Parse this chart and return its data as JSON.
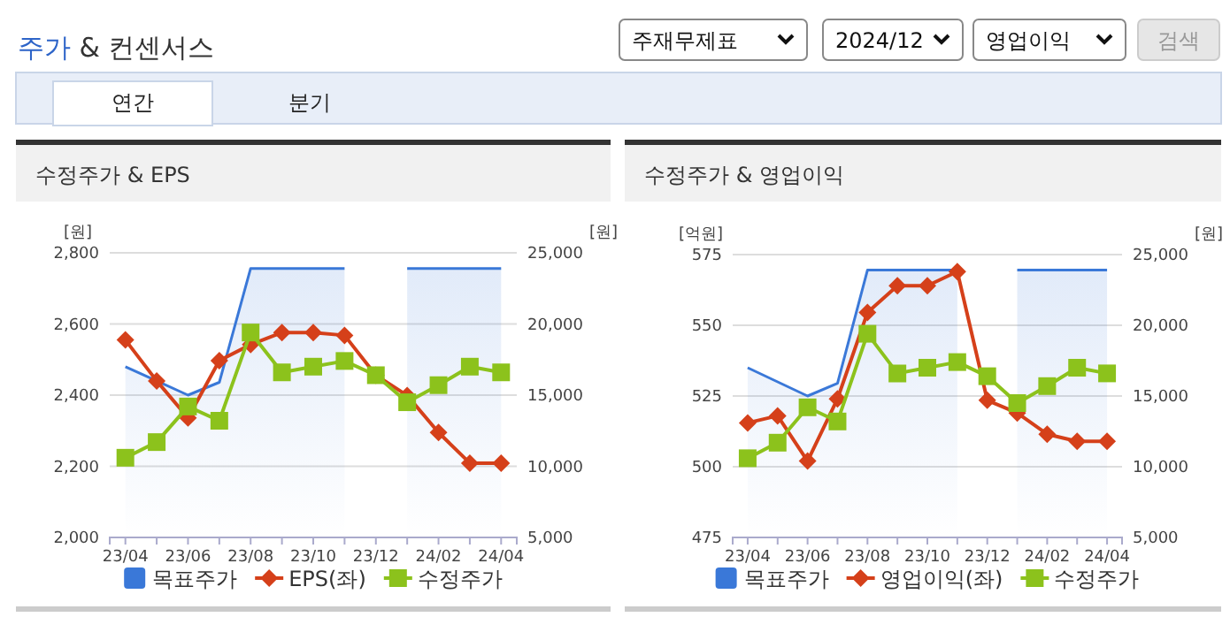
{
  "chart_data": [
    {
      "type": "other",
      "title": "주가 & 컨센서스",
      "annotations": [
        "주재무제표",
        "2024/12",
        "영업이익",
        "검색",
        "연간",
        "분기"
      ]
    },
    {
      "type": "line",
      "title": "수정주가 & EPS",
      "ylabel": "[원]",
      "y2label": "[원]",
      "categories": [
        "23/04",
        null,
        "23/06",
        null,
        "23/08",
        null,
        "23/10",
        null,
        "23/12",
        null,
        "24/02",
        null,
        "24/04"
      ],
      "ylim": [
        2000,
        2800
      ],
      "yticks": [
        {
          "value": 2000,
          "label": "2,000"
        },
        {
          "value": 2200,
          "label": "2,200"
        },
        {
          "value": 2400,
          "label": "2,400"
        },
        {
          "value": 2600,
          "label": "2,600"
        },
        {
          "value": 2800,
          "label": "2,800"
        }
      ],
      "y2lim": [
        5000,
        25000
      ],
      "y2ticks": [
        {
          "value": 5000,
          "label": "5,000"
        },
        {
          "value": 10000,
          "label": "10,000"
        },
        {
          "value": 15000,
          "label": "15,000"
        },
        {
          "value": 20000,
          "label": "20,000"
        },
        {
          "value": 25000,
          "label": "25,000"
        }
      ],
      "grid": "y",
      "legend": "bottom",
      "series": [
        {
          "name": "목표주가",
          "type": "area",
          "axis": "y2",
          "color": "#3a78d8",
          "marker": "none",
          "values": [
            17000,
            16000,
            15000,
            15900,
            23900,
            23900,
            23900,
            23900,
            null,
            23900,
            23900,
            23900,
            23900
          ]
        },
        {
          "name": "EPS(좌)",
          "type": "line",
          "axis": "y",
          "color": "#d5401a",
          "marker": "diamond",
          "values": [
            2555,
            2440,
            2336,
            2497,
            2542,
            2576,
            2576,
            2568,
            2456,
            2399,
            2295,
            2209,
            2209
          ]
        },
        {
          "name": "수정주가",
          "type": "line",
          "axis": "y2",
          "color": "#8cc21c",
          "marker": "square",
          "values": [
            10600,
            11700,
            14200,
            13200,
            19400,
            16600,
            17000,
            17400,
            16400,
            14500,
            15700,
            17000,
            16600
          ]
        }
      ]
    },
    {
      "type": "line",
      "title": "수정주가 & 영업이익",
      "ylabel": "[억원]",
      "y2label": "[원]",
      "categories": [
        "23/04",
        null,
        "23/06",
        null,
        "23/08",
        null,
        "23/10",
        null,
        "23/12",
        null,
        "24/02",
        null,
        "24/04"
      ],
      "ylim": [
        475,
        575
      ],
      "yticks": [
        475,
        500,
        525,
        550,
        575
      ],
      "y2lim": [
        5000,
        25000
      ],
      "y2ticks": [
        {
          "value": 5000,
          "label": "5,000"
        },
        {
          "value": 10000,
          "label": "10,000"
        },
        {
          "value": 15000,
          "label": "15,000"
        },
        {
          "value": 20000,
          "label": "20,000"
        },
        {
          "value": 25000,
          "label": "25,000"
        }
      ],
      "grid": "y",
      "legend": "bottom",
      "series": [
        {
          "name": "목표주가",
          "type": "area",
          "axis": "y2",
          "color": "#3a78d8",
          "marker": "none",
          "values": [
            17000,
            16000,
            15000,
            15900,
            23900,
            23900,
            23900,
            23900,
            null,
            23900,
            23900,
            23900,
            23900
          ]
        },
        {
          "name": "영업이익(좌)",
          "type": "line",
          "axis": "y",
          "color": "#d5401a",
          "marker": "diamond",
          "values": [
            515.5,
            518,
            502,
            524,
            554.5,
            564,
            564,
            569,
            523.5,
            519,
            511.5,
            509,
            509
          ]
        },
        {
          "name": "수정주가",
          "type": "line",
          "axis": "y2",
          "color": "#8cc21c",
          "marker": "square",
          "values": [
            10600,
            11700,
            14200,
            13200,
            19400,
            16600,
            17000,
            17400,
            16400,
            14500,
            15700,
            17000,
            16600
          ]
        }
      ]
    }
  ]
}
